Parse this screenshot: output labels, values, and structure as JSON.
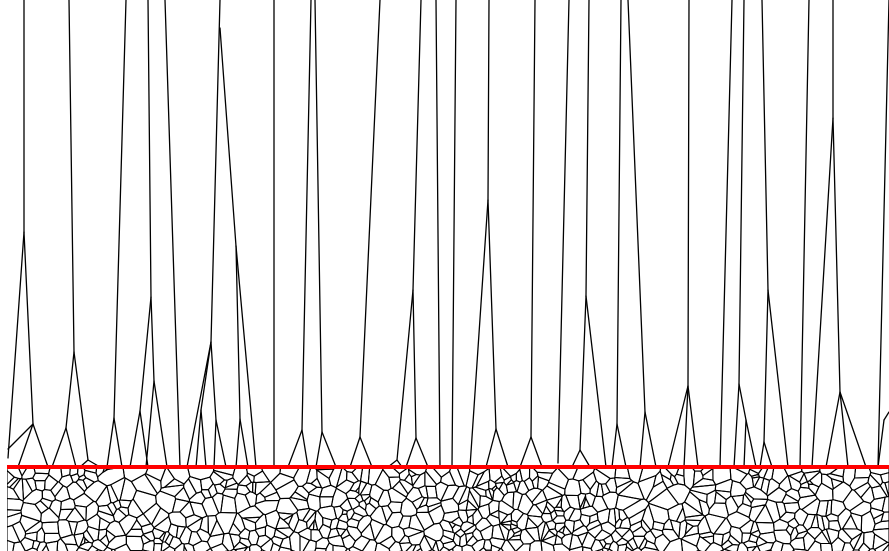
{
  "diagram": {
    "type": "voronoi-grain-growth",
    "description_visible_text": "",
    "colors": {
      "background": "#ffffff",
      "edges": "#000000",
      "interface_line": "#ff0000"
    }
  }
}
